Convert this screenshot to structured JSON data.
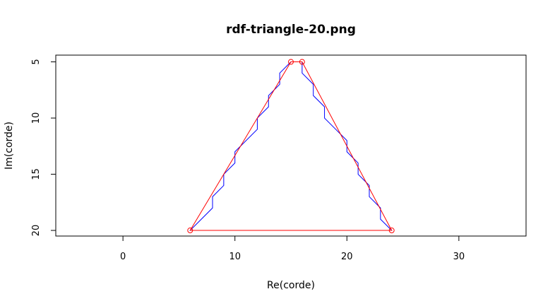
{
  "chart_data": {
    "type": "line",
    "title": "rdf-triangle-20.png",
    "xlabel": "Re(corde)",
    "ylabel": "Im(corde)",
    "xlim": [
      -6,
      36
    ],
    "ylim": [
      20.5,
      4.4
    ],
    "x_axis": {
      "ticks": [
        0,
        10,
        20,
        30
      ],
      "tick_labels": [
        "0",
        "10",
        "20",
        "30"
      ],
      "range": [
        0,
        30
      ]
    },
    "y_axis": {
      "ticks": [
        5,
        10,
        15,
        20
      ],
      "tick_labels": [
        "5",
        "10",
        "15",
        "20"
      ],
      "inverted": true
    },
    "grid": false,
    "series": [
      {
        "role": "staircase",
        "color": "#0000ff",
        "points": [
          [
            16,
            5
          ],
          [
            16,
            6
          ],
          [
            17,
            7
          ],
          [
            17,
            8
          ],
          [
            18,
            9
          ],
          [
            18,
            10
          ],
          [
            19,
            11
          ],
          [
            20,
            12
          ],
          [
            20,
            13
          ],
          [
            21,
            14
          ],
          [
            21,
            15
          ],
          [
            22,
            16
          ],
          [
            22,
            17
          ],
          [
            23,
            18
          ],
          [
            23,
            19
          ],
          [
            24,
            20
          ],
          [
            6,
            20
          ],
          [
            8,
            18
          ],
          [
            8,
            17
          ],
          [
            9,
            16
          ],
          [
            9,
            15
          ],
          [
            10,
            14
          ],
          [
            10,
            13
          ],
          [
            12,
            11
          ],
          [
            12,
            10
          ],
          [
            13,
            9
          ],
          [
            13,
            8
          ],
          [
            14,
            7
          ],
          [
            14,
            6
          ],
          [
            15,
            5
          ]
        ]
      },
      {
        "role": "polygon",
        "color": "#ff0000",
        "marker": "circle",
        "points": [
          [
            6,
            20
          ],
          [
            15,
            5
          ],
          [
            16,
            5
          ],
          [
            24,
            20
          ],
          [
            6,
            20
          ]
        ]
      }
    ]
  }
}
